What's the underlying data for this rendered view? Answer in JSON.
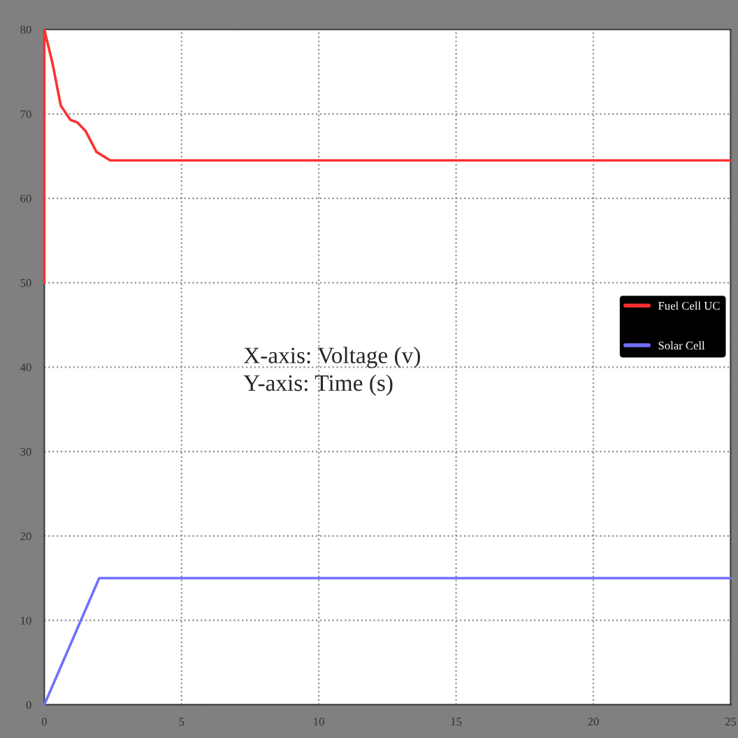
{
  "chart_data": {
    "type": "line",
    "xlim": [
      0,
      25
    ],
    "ylim": [
      0,
      80
    ],
    "xticks": [
      0,
      5,
      10,
      15,
      20,
      25
    ],
    "yticks": [
      0,
      10,
      20,
      30,
      40,
      50,
      60,
      70,
      80
    ],
    "grid": true,
    "legend": "right",
    "line_style": "solid",
    "marker": "none",
    "series": [
      {
        "name": "Fuel Cell UC",
        "color": "#ff3030",
        "x": [
          0,
          0,
          0.3,
          0.6,
          0.95,
          1.2,
          1.5,
          1.9,
          2.4,
          25
        ],
        "values": [
          50,
          80,
          76,
          71,
          69.3,
          69,
          68,
          65.5,
          64.5,
          64.5
        ]
      },
      {
        "name": "Solar Cell",
        "color": "#7070ff",
        "x": [
          0,
          2,
          25
        ],
        "values": [
          0,
          15,
          15
        ]
      }
    ],
    "annotations": [
      "X-axis: Voltage (v)\nY-axis: Time (s)"
    ]
  }
}
